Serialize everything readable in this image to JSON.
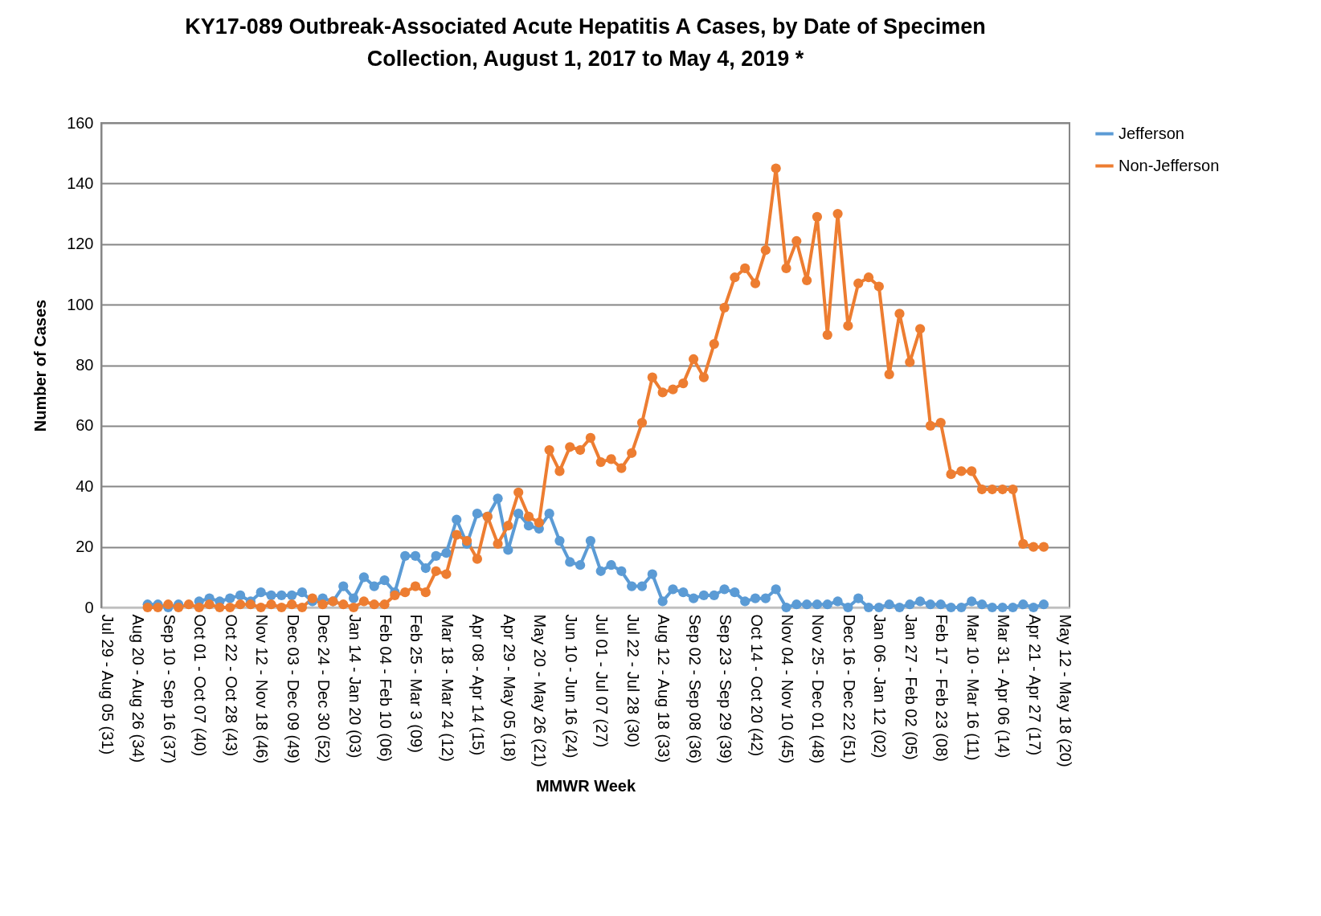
{
  "chart_data": {
    "type": "line",
    "title": "KY17-089 Outbreak-Associated Acute Hepatitis A Cases, by Date of Specimen Collection, August 1, 2017 to May 4, 2019 *",
    "xlabel": "MMWR Week",
    "ylabel": "Number of Cases",
    "categories": [
      "Jul 29 - Aug 05 (31)",
      null,
      null,
      "Aug 20 - Aug 26 (34)",
      null,
      null,
      "Sep 10 - Sep 16 (37)",
      null,
      null,
      "Oct 01 - Oct 07 (40)",
      null,
      null,
      "Oct 22 - Oct 28 (43)",
      null,
      null,
      "Nov 12 - Nov 18 (46)",
      null,
      null,
      "Dec 03 - Dec 09 (49)",
      null,
      null,
      "Dec 24 - Dec 30 (52)",
      null,
      null,
      "Jan 14 - Jan 20 (03)",
      null,
      null,
      "Feb 04 - Feb 10 (06)",
      null,
      null,
      "Feb 25 - Mar 3 (09)",
      null,
      null,
      "Mar 18 - Mar 24 (12)",
      null,
      null,
      "Apr 08 - Apr 14 (15)",
      null,
      null,
      "Apr 29 - May 05 (18)",
      null,
      null,
      "May 20 - May 26 (21)",
      null,
      null,
      "Jun 10 - Jun 16 (24)",
      null,
      null,
      "Jul 01 - Jul 07 (27)",
      null,
      null,
      "Jul 22 - Jul 28 (30)",
      null,
      null,
      "Aug 12 - Aug 18 (33)",
      null,
      null,
      "Sep 02 - Sep 08 (36)",
      null,
      null,
      "Sep 23 - Sep 29 (39)",
      null,
      null,
      "Oct 14 - Oct 20 (42)",
      null,
      null,
      "Nov 04 - Nov 10 (45)",
      null,
      null,
      "Nov 25 - Dec 01 (48)",
      null,
      null,
      "Dec 16 - Dec 22 (51)",
      null,
      null,
      "Jan 06 - Jan 12 (02)",
      null,
      null,
      "Jan 27 - Feb 02 (05)",
      null,
      null,
      "Feb 17 - Feb 23 (08)",
      null,
      null,
      "Mar 10 - Mar 16 (11)",
      null,
      null,
      "Mar 31 - Apr 06 (14)",
      null,
      null,
      "Apr 21 - Apr 27 (17)",
      null,
      null,
      "May 12 - May 18 (20)"
    ],
    "series": [
      {
        "name": "Jefferson",
        "color": "#5b9bd5",
        "values": [
          null,
          null,
          null,
          null,
          1,
          1,
          0,
          1,
          null,
          2,
          3,
          2,
          3,
          4,
          2,
          5,
          4,
          4,
          4,
          5,
          2,
          3,
          2,
          7,
          3,
          10,
          7,
          9,
          5,
          17,
          17,
          13,
          17,
          18,
          29,
          21,
          31,
          30,
          36,
          19,
          31,
          27,
          26,
          31,
          22,
          15,
          14,
          22,
          12,
          14,
          12,
          7,
          7,
          11,
          2,
          6,
          5,
          3,
          4,
          4,
          6,
          5,
          2,
          3,
          3,
          6,
          0,
          1,
          1,
          1,
          1,
          2,
          0,
          3,
          0,
          0,
          1,
          0,
          1,
          2,
          1,
          1,
          0,
          0,
          2,
          1,
          0,
          0,
          0,
          1,
          0,
          1,
          null,
          null
        ]
      },
      {
        "name": "Non-Jefferson",
        "color": "#ed7d31",
        "values": [
          null,
          null,
          null,
          null,
          0,
          0,
          1,
          0,
          1,
          0,
          1,
          0,
          0,
          1,
          1,
          0,
          1,
          0,
          1,
          0,
          3,
          1,
          2,
          1,
          0,
          2,
          1,
          1,
          4,
          5,
          7,
          5,
          12,
          11,
          24,
          22,
          16,
          30,
          21,
          27,
          38,
          30,
          28,
          52,
          45,
          53,
          52,
          56,
          48,
          49,
          46,
          51,
          61,
          76,
          71,
          72,
          74,
          82,
          76,
          87,
          99,
          109,
          112,
          107,
          118,
          145,
          112,
          121,
          108,
          129,
          90,
          130,
          93,
          107,
          109,
          106,
          77,
          97,
          81,
          92,
          60,
          61,
          44,
          45,
          45,
          39,
          39,
          39,
          39,
          21,
          20,
          20,
          null,
          null
        ]
      }
    ],
    "ylim": [
      0,
      160
    ],
    "yticks": [
      0,
      20,
      40,
      60,
      80,
      100,
      120,
      140,
      160
    ],
    "grid": "y",
    "legend": "right",
    "marker": "circle",
    "line_style": "solid"
  }
}
